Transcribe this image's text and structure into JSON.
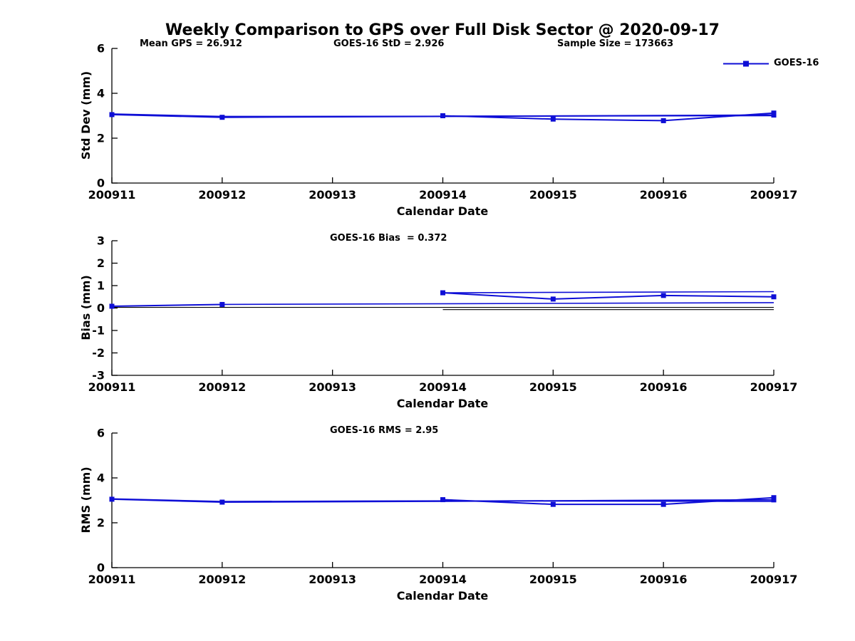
{
  "title": "Weekly Comparison to GPS over Full Disk Sector @ 2020-09-17",
  "legend": {
    "label": "GOES-16"
  },
  "colors": {
    "series": "#0e0ed6",
    "axis": "#000000",
    "reference": "#000000",
    "background": "#ffffff",
    "text": "#000000"
  },
  "chart_data": [
    {
      "type": "line",
      "panel": "std-dev",
      "annotations": [
        "Mean GPS = 26.912",
        "GOES-16 StD = 2.926",
        "Sample Size = 173663"
      ],
      "ylabel": "Std Dev (mm)",
      "xlabel": "Calendar Date",
      "x_tick_labels": [
        "200911",
        "200912",
        "200913",
        "200914",
        "200915",
        "200916",
        "200917"
      ],
      "y_ticks": [
        0,
        2,
        4,
        6
      ],
      "ylim": [
        0,
        6
      ],
      "grid": false,
      "legend_position": "top-right",
      "series": [
        {
          "name": "goes-16-week1",
          "markers": true,
          "x": [
            200911,
            200912,
            200917
          ],
          "y": [
            3.05,
            2.93,
            3.03
          ]
        },
        {
          "name": "goes-16-week1-trace",
          "markers": false,
          "x": [
            200911,
            200912,
            200914,
            200917
          ],
          "y": [
            3.08,
            2.97,
            2.98,
            3.0
          ]
        },
        {
          "name": "goes-16-week2",
          "markers": true,
          "x": [
            200914,
            200915,
            200916,
            200917
          ],
          "y": [
            3.0,
            2.85,
            2.78,
            3.12
          ]
        }
      ],
      "reference_lines": []
    },
    {
      "type": "line",
      "panel": "bias",
      "title": "GOES-16 Bias  = 0.372",
      "ylabel": "Bias (mm)",
      "xlabel": "Calendar Date",
      "x_tick_labels": [
        "200911",
        "200912",
        "200913",
        "200914",
        "200915",
        "200916",
        "200917"
      ],
      "y_ticks": [
        -3,
        -2,
        -1,
        0,
        1,
        2,
        3
      ],
      "ylim": [
        -3,
        3
      ],
      "grid": false,
      "series": [
        {
          "name": "goes-16-week1",
          "markers": true,
          "x": [
            200911,
            200912
          ],
          "y": [
            0.08,
            0.16
          ]
        },
        {
          "name": "goes-16-week1-trace",
          "markers": false,
          "x": [
            200912,
            200917
          ],
          "y": [
            0.16,
            0.24
          ]
        },
        {
          "name": "goes-16-week2",
          "markers": true,
          "x": [
            200914,
            200915,
            200916,
            200917
          ],
          "y": [
            0.68,
            0.4,
            0.56,
            0.5
          ]
        },
        {
          "name": "goes-16-week2-trace",
          "markers": false,
          "x": [
            200914,
            200917
          ],
          "y": [
            0.68,
            0.73
          ]
        }
      ],
      "reference_lines": [
        {
          "y": 0.03,
          "x_start": 200911,
          "x_end": 200917
        },
        {
          "y": -0.07,
          "x_start": 200914,
          "x_end": 200917
        }
      ]
    },
    {
      "type": "line",
      "panel": "rms",
      "title": "GOES-16 RMS = 2.95",
      "ylabel": "RMS (mm)",
      "xlabel": "Calendar Date",
      "x_tick_labels": [
        "200911",
        "200912",
        "200913",
        "200914",
        "200915",
        "200916",
        "200917"
      ],
      "y_ticks": [
        0,
        2,
        4,
        6
      ],
      "ylim": [
        0,
        6
      ],
      "grid": false,
      "series": [
        {
          "name": "goes-16-week1",
          "markers": true,
          "x": [
            200911,
            200912,
            200917
          ],
          "y": [
            3.05,
            2.92,
            3.02
          ]
        },
        {
          "name": "goes-16-week1-trace",
          "markers": false,
          "x": [
            200911,
            200912,
            200914,
            200917
          ],
          "y": [
            3.07,
            2.95,
            2.98,
            2.95
          ]
        },
        {
          "name": "goes-16-week2",
          "markers": true,
          "x": [
            200914,
            200915,
            200916,
            200917
          ],
          "y": [
            3.03,
            2.82,
            2.82,
            3.12
          ]
        }
      ],
      "reference_lines": []
    }
  ]
}
